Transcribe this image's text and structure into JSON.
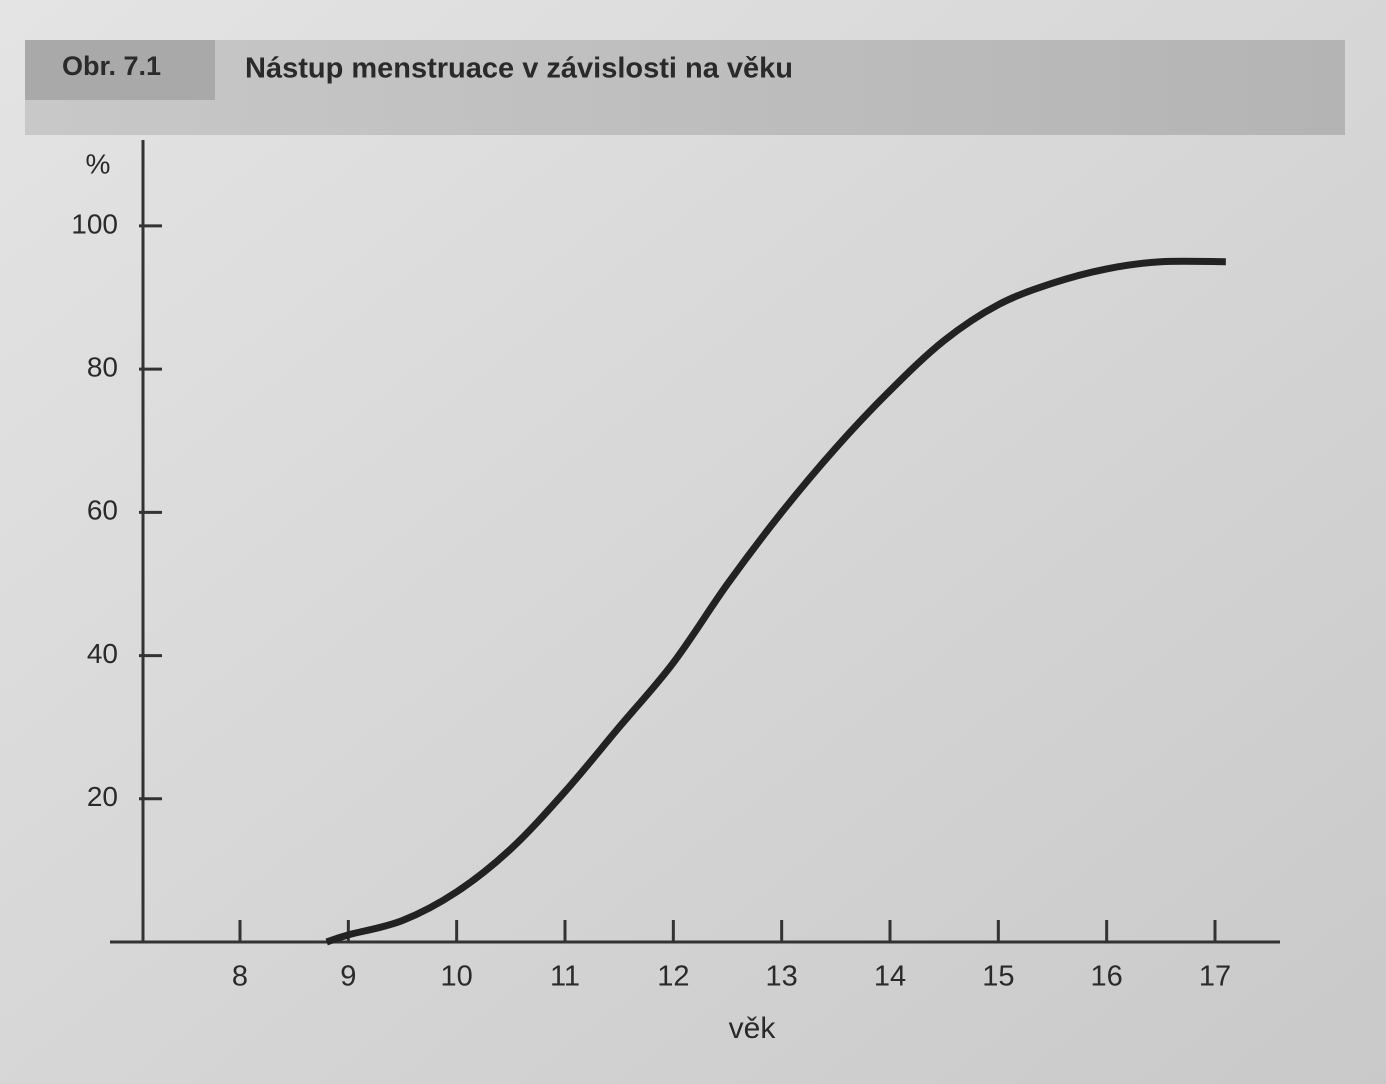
{
  "figure_label": "Obr. 7.1",
  "chart_data": {
    "type": "line",
    "title": "Nástup menstruace v závislosti na věku",
    "y_label": "%",
    "x_label": "věk",
    "x": [
      8.8,
      9,
      9.5,
      10,
      10.5,
      11,
      11.5,
      12,
      12.5,
      13,
      13.5,
      14,
      14.5,
      15,
      15.5,
      16,
      16.5,
      17.1
    ],
    "values": [
      0,
      1,
      3,
      7,
      13,
      21,
      30,
      39,
      50,
      60,
      69,
      77,
      84,
      89,
      92,
      94,
      95,
      95
    ],
    "color": "#222222",
    "xlim": [
      6.8,
      17.6
    ],
    "xticks": [
      8,
      9,
      10,
      11,
      12,
      13,
      14,
      15,
      16,
      17
    ],
    "ylim": [
      0,
      112
    ],
    "yticks": [
      20,
      40,
      60,
      80,
      100
    ],
    "grid": false
  }
}
